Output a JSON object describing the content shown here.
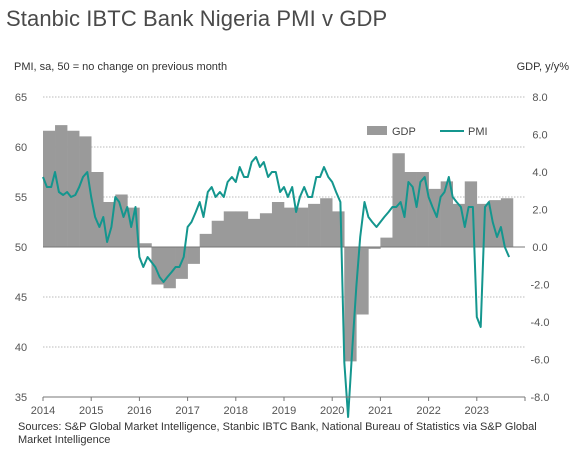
{
  "title": "Stanbic IBTC Bank Nigeria PMI v GDP",
  "left_axis_label": "PMI, sa, 50 = no change on previous month",
  "right_axis_label": "GDP, y/y%",
  "source": "Sources: S&P Global Market Intelligence, Stanbic IBTC Bank, National Bureau of Statistics via S&P Global Market Intelligence",
  "chart_data": {
    "type": "bar",
    "x_tick_labels": [
      "2014",
      "2015",
      "2016",
      "2017",
      "2018",
      "2019",
      "2020",
      "2021",
      "2022",
      "2023"
    ],
    "y_left": {
      "min": 35,
      "max": 65,
      "ticks": [
        65,
        60,
        55,
        50,
        45,
        40,
        35
      ]
    },
    "y_right": {
      "min": -8,
      "max": 8,
      "ticks": [
        "8.0",
        "6.0",
        "4.0",
        "2.0",
        "0.0",
        "-2.0",
        "-4.0",
        "-6.0",
        "-8.0"
      ]
    },
    "grid": true,
    "legend_position": "top-right",
    "colors": {
      "gdp": "#9a9a9a",
      "pmi": "#14968e",
      "grid": "#bbbbbb",
      "axis": "#777777"
    },
    "series": [
      {
        "name": "GDP",
        "axis": "right",
        "type": "bar",
        "x": [
          2014.0,
          2014.25,
          2014.5,
          2014.75,
          2015.0,
          2015.25,
          2015.5,
          2015.75,
          2016.0,
          2016.25,
          2016.5,
          2016.75,
          2017.0,
          2017.25,
          2017.5,
          2017.75,
          2018.0,
          2018.25,
          2018.5,
          2018.75,
          2019.0,
          2019.25,
          2019.5,
          2019.75,
          2020.0,
          2020.25,
          2020.5,
          2020.75,
          2021.0,
          2021.25,
          2021.5,
          2021.75,
          2022.0,
          2022.25,
          2022.5,
          2022.75,
          2023.0,
          2023.25,
          2023.5
        ],
        "values": [
          6.2,
          6.5,
          6.2,
          5.9,
          4.0,
          2.4,
          2.8,
          2.1,
          0.2,
          -2.0,
          -2.2,
          -1.7,
          -0.9,
          0.7,
          1.4,
          1.9,
          1.9,
          1.5,
          1.8,
          2.4,
          2.1,
          2.1,
          2.3,
          2.6,
          1.9,
          -6.1,
          -3.6,
          -0.1,
          0.5,
          5.0,
          4.0,
          4.0,
          3.1,
          3.5,
          2.3,
          3.5,
          2.3,
          2.5,
          2.6
        ]
      },
      {
        "name": "PMI",
        "axis": "left",
        "type": "line",
        "points": [
          [
            2014.0,
            57.0
          ],
          [
            2014.08,
            56.0
          ],
          [
            2014.17,
            56.0
          ],
          [
            2014.25,
            57.5
          ],
          [
            2014.33,
            55.5
          ],
          [
            2014.42,
            55.2
          ],
          [
            2014.5,
            55.5
          ],
          [
            2014.58,
            55.0
          ],
          [
            2014.67,
            55.2
          ],
          [
            2014.75,
            56.0
          ],
          [
            2014.83,
            57.0
          ],
          [
            2014.92,
            57.5
          ],
          [
            2015.0,
            55.0
          ],
          [
            2015.08,
            53.0
          ],
          [
            2015.17,
            52.0
          ],
          [
            2015.25,
            53.0
          ],
          [
            2015.33,
            50.5
          ],
          [
            2015.42,
            52.0
          ],
          [
            2015.5,
            55.0
          ],
          [
            2015.58,
            54.5
          ],
          [
            2015.67,
            53.0
          ],
          [
            2015.75,
            54.0
          ],
          [
            2015.83,
            52.0
          ],
          [
            2015.92,
            54.0
          ],
          [
            2016.0,
            49.0
          ],
          [
            2016.08,
            48.0
          ],
          [
            2016.17,
            49.0
          ],
          [
            2016.25,
            48.5
          ],
          [
            2016.33,
            48.0
          ],
          [
            2016.42,
            47.0
          ],
          [
            2016.5,
            46.5
          ],
          [
            2016.58,
            47.0
          ],
          [
            2016.67,
            47.5
          ],
          [
            2016.75,
            48.0
          ],
          [
            2016.83,
            48.0
          ],
          [
            2016.92,
            49.0
          ],
          [
            2017.0,
            52.0
          ],
          [
            2017.08,
            52.5
          ],
          [
            2017.17,
            53.5
          ],
          [
            2017.25,
            54.5
          ],
          [
            2017.33,
            53.0
          ],
          [
            2017.42,
            55.5
          ],
          [
            2017.5,
            56.0
          ],
          [
            2017.58,
            55.0
          ],
          [
            2017.67,
            55.5
          ],
          [
            2017.75,
            55.0
          ],
          [
            2017.83,
            56.5
          ],
          [
            2017.92,
            57.0
          ],
          [
            2018.0,
            56.5
          ],
          [
            2018.08,
            58.0
          ],
          [
            2018.17,
            57.0
          ],
          [
            2018.25,
            57.0
          ],
          [
            2018.33,
            58.5
          ],
          [
            2018.42,
            59.0
          ],
          [
            2018.5,
            58.0
          ],
          [
            2018.58,
            58.5
          ],
          [
            2018.67,
            57.0
          ],
          [
            2018.75,
            57.5
          ],
          [
            2018.83,
            57.5
          ],
          [
            2018.92,
            55.5
          ],
          [
            2019.0,
            56.0
          ],
          [
            2019.08,
            55.0
          ],
          [
            2019.17,
            56.0
          ],
          [
            2019.25,
            53.5
          ],
          [
            2019.33,
            55.0
          ],
          [
            2019.42,
            56.0
          ],
          [
            2019.5,
            55.0
          ],
          [
            2019.58,
            55.0
          ],
          [
            2019.67,
            57.0
          ],
          [
            2019.75,
            57.0
          ],
          [
            2019.83,
            58.0
          ],
          [
            2019.92,
            57.0
          ],
          [
            2020.0,
            56.5
          ],
          [
            2020.08,
            55.5
          ],
          [
            2020.17,
            54.5
          ],
          [
            2020.25,
            38.5
          ],
          [
            2020.33,
            33.0
          ],
          [
            2020.42,
            40.0
          ],
          [
            2020.5,
            46.0
          ],
          [
            2020.58,
            51.0
          ],
          [
            2020.67,
            54.5
          ],
          [
            2020.75,
            53.0
          ],
          [
            2020.83,
            52.5
          ],
          [
            2020.92,
            52.0
          ],
          [
            2021.0,
            52.5
          ],
          [
            2021.08,
            53.0
          ],
          [
            2021.17,
            53.5
          ],
          [
            2021.25,
            54.0
          ],
          [
            2021.33,
            54.0
          ],
          [
            2021.42,
            54.5
          ],
          [
            2021.5,
            53.0
          ],
          [
            2021.58,
            56.5
          ],
          [
            2021.67,
            56.0
          ],
          [
            2021.75,
            54.0
          ],
          [
            2021.83,
            56.5
          ],
          [
            2021.92,
            57.0
          ],
          [
            2022.0,
            55.0
          ],
          [
            2022.08,
            54.0
          ],
          [
            2022.17,
            53.0
          ],
          [
            2022.25,
            55.0
          ],
          [
            2022.33,
            55.5
          ],
          [
            2022.42,
            57.0
          ],
          [
            2022.5,
            55.0
          ],
          [
            2022.58,
            54.5
          ],
          [
            2022.67,
            54.0
          ],
          [
            2022.75,
            52.0
          ],
          [
            2022.83,
            54.0
          ],
          [
            2022.92,
            54.0
          ],
          [
            2023.0,
            43.0
          ],
          [
            2023.08,
            42.0
          ],
          [
            2023.17,
            54.0
          ],
          [
            2023.25,
            54.5
          ],
          [
            2023.33,
            52.5
          ],
          [
            2023.42,
            51.0
          ],
          [
            2023.5,
            52.0
          ],
          [
            2023.58,
            50.0
          ],
          [
            2023.67,
            49.0
          ]
        ]
      }
    ]
  }
}
